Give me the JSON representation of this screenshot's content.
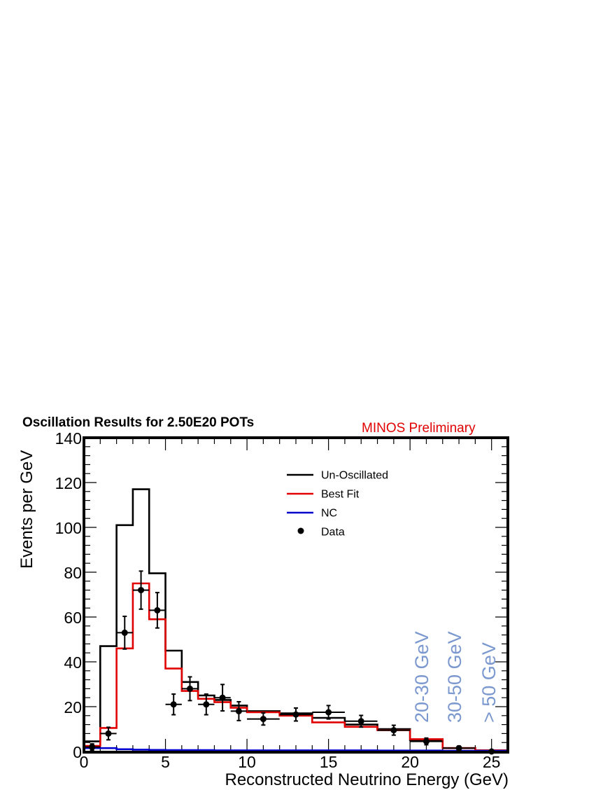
{
  "chart_data": {
    "type": "line",
    "title": "Oscillation Results for 2.50E20 POTs",
    "annotation": "MINOS Preliminary",
    "xlabel": "Reconstructed Neutrino Energy (GeV)",
    "ylabel": "Events per GeV",
    "xlim": [
      0,
      26
    ],
    "ylim": [
      0,
      140
    ],
    "x_ticks": [
      "0",
      "5",
      "10",
      "15",
      "20",
      "25"
    ],
    "y_ticks": [
      "0",
      "20",
      "40",
      "60",
      "80",
      "100",
      "120",
      "140"
    ],
    "legend_position": "top-right",
    "bin_edges": [
      0,
      1,
      2,
      3,
      4,
      5,
      6,
      7,
      8,
      9,
      10,
      12,
      14,
      16,
      18,
      20,
      22,
      24,
      26
    ],
    "series": [
      {
        "name": "Un-Oscillated",
        "color": "#000000",
        "style": "step",
        "values": [
          4.5,
          47,
          101,
          117,
          79.5,
          45,
          31,
          25,
          23,
          20.5,
          18,
          17,
          15,
          12,
          10,
          5,
          1.5,
          0.5
        ]
      },
      {
        "name": "Best Fit",
        "color": "#e00000",
        "style": "step",
        "values": [
          2.5,
          10.5,
          46,
          75,
          59,
          37,
          27,
          23.5,
          22,
          19.5,
          17.5,
          16,
          13,
          11,
          9.5,
          5.5,
          1.5,
          0.5
        ]
      },
      {
        "name": "NC",
        "color": "#0000cc",
        "style": "step",
        "values": [
          1.5,
          1.5,
          1,
          0.8,
          0.7,
          0.6,
          0.6,
          0.6,
          0.5,
          0.5,
          0.5,
          0.5,
          0.5,
          0.5,
          0.4,
          0.4,
          0.3,
          0.3
        ]
      },
      {
        "name": "Data",
        "color": "#000000",
        "style": "points",
        "x": [
          0.5,
          1.5,
          2.5,
          3.5,
          4.5,
          5.5,
          6.5,
          7.5,
          8.5,
          9.5,
          11,
          13,
          15,
          17,
          19,
          21,
          23,
          25
        ],
        "values": [
          2,
          8,
          53,
          72,
          63,
          21,
          28,
          21,
          24,
          18,
          14.5,
          16.5,
          17.5,
          13.5,
          9.5,
          4.5,
          1.5,
          0
        ],
        "xerr": [
          0.5,
          0.5,
          0.5,
          0.5,
          0.5,
          0.5,
          0.5,
          0.5,
          0.5,
          0.5,
          1,
          1,
          1,
          1,
          1,
          1,
          1,
          1
        ],
        "yerr": [
          1.4,
          2.8,
          7.3,
          8.5,
          7.9,
          4.6,
          5.3,
          4.6,
          5.9,
          4.2,
          2.7,
          2.9,
          3,
          2.6,
          2.2,
          1.5,
          0.9,
          0
        ]
      }
    ],
    "bin_labels": [
      "20-30 GeV",
      "30-50 GeV",
      "> 50 GeV"
    ]
  }
}
